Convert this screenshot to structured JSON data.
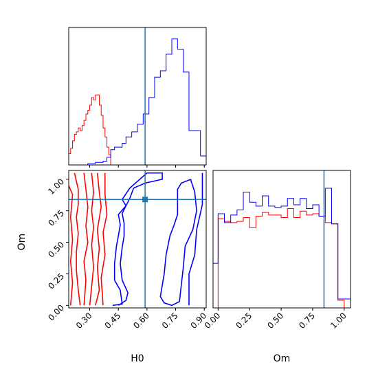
{
  "chart_data": {
    "type": "corner",
    "parameters": [
      "H0",
      "Om"
    ],
    "truth": {
      "H0": 0.59,
      "Om": 0.84
    },
    "colors": {
      "red": "#ff0000",
      "blue": "#0000ff",
      "truth": "#1f77b4"
    },
    "hist_H0": {
      "xlim": [
        0.19,
        0.91
      ],
      "ticks": [
        0.3,
        0.45,
        0.6,
        0.75,
        0.9
      ],
      "tick_labels": [
        "0.30",
        "0.45",
        "0.60",
        "0.75",
        "0.90"
      ],
      "red": {
        "edges": [
          0.19,
          0.2,
          0.21,
          0.22,
          0.23,
          0.24,
          0.25,
          0.26,
          0.27,
          0.28,
          0.29,
          0.3,
          0.31,
          0.32,
          0.33,
          0.34,
          0.35,
          0.36,
          0.37,
          0.38,
          0.39,
          0.4,
          0.41,
          0.42
        ],
        "counts": [
          0.09,
          0.13,
          0.19,
          0.24,
          0.26,
          0.29,
          0.27,
          0.31,
          0.35,
          0.4,
          0.43,
          0.47,
          0.53,
          0.51,
          0.55,
          0.55,
          0.47,
          0.39,
          0.29,
          0.22,
          0.14,
          0.08,
          0.0
        ]
      },
      "blue": {
        "edges": [
          0.27,
          0.29,
          0.31,
          0.33,
          0.35,
          0.37,
          0.39,
          0.41,
          0.43,
          0.45,
          0.47,
          0.49,
          0.52,
          0.55,
          0.58,
          0.61,
          0.64,
          0.67,
          0.7,
          0.73,
          0.76,
          0.79,
          0.82,
          0.85,
          0.88,
          0.91
        ],
        "counts": [
          0.0,
          0.01,
          0.01,
          0.02,
          0.02,
          0.03,
          0.06,
          0.12,
          0.14,
          0.14,
          0.17,
          0.22,
          0.26,
          0.32,
          0.4,
          0.53,
          0.69,
          0.74,
          0.87,
          0.99,
          0.91,
          0.73,
          0.27,
          0.27,
          0.07
        ]
      }
    },
    "hist_Om": {
      "xlim": [
        -0.04,
        1.05
      ],
      "ticks": [
        0.0,
        0.25,
        0.5,
        0.75,
        1.0
      ],
      "tick_labels": [
        "0.00",
        "0.25",
        "0.50",
        "0.75",
        "1.00"
      ],
      "red": {
        "edges": [
          -0.02,
          0.0,
          0.05,
          0.1,
          0.15,
          0.2,
          0.25,
          0.3,
          0.35,
          0.4,
          0.45,
          0.5,
          0.55,
          0.6,
          0.65,
          0.7,
          0.75,
          0.8,
          0.85,
          0.9,
          0.95,
          1.0,
          1.05
        ],
        "counts": [
          0.0,
          0.7,
          0.68,
          0.67,
          0.68,
          0.71,
          0.63,
          0.72,
          0.75,
          0.73,
          0.73,
          0.71,
          0.78,
          0.71,
          0.76,
          0.73,
          0.74,
          0.72,
          0.67,
          0.66,
          0.06,
          0.0
        ]
      },
      "blue": {
        "edges": [
          -0.04,
          0.0,
          0.05,
          0.1,
          0.15,
          0.2,
          0.25,
          0.3,
          0.35,
          0.4,
          0.45,
          0.5,
          0.55,
          0.6,
          0.65,
          0.7,
          0.75,
          0.8,
          0.85,
          0.9,
          0.95,
          1.0,
          1.05
        ],
        "counts": [
          0.35,
          0.74,
          0.67,
          0.73,
          0.77,
          0.91,
          0.83,
          0.8,
          0.88,
          0.8,
          0.79,
          0.8,
          0.86,
          0.81,
          0.86,
          0.78,
          0.81,
          0.72,
          0.94,
          0.66,
          0.07,
          0.07
        ]
      }
    },
    "contour": {
      "xlim": [
        0.19,
        0.91
      ],
      "ylim": [
        -0.02,
        1.07
      ],
      "xticks": [
        0.3,
        0.45,
        0.6,
        0.75,
        0.9
      ],
      "xtick_labels": [
        "0.30",
        "0.45",
        "0.60",
        "0.75",
        "0.90"
      ],
      "yticks": [
        0.0,
        0.25,
        0.5,
        0.75,
        1.0
      ],
      "ytick_labels": [
        "0.00",
        "0.25",
        "0.50",
        "0.75",
        "1.00"
      ],
      "blue": [
        [
          [
            0.42,
            0.0
          ],
          [
            0.47,
            0.01
          ],
          [
            0.46,
            0.12
          ],
          [
            0.43,
            0.2
          ],
          [
            0.43,
            0.33
          ],
          [
            0.44,
            0.47
          ],
          [
            0.45,
            0.55
          ],
          [
            0.46,
            0.64
          ],
          [
            0.45,
            0.72
          ],
          [
            0.49,
            0.79
          ],
          [
            0.47,
            0.84
          ],
          [
            0.51,
            0.93
          ],
          [
            0.6,
            1.05
          ],
          [
            0.68,
            1.05
          ],
          [
            0.68,
            1.0
          ],
          [
            0.59,
            0.97
          ],
          [
            0.53,
            0.93
          ],
          [
            0.51,
            0.85
          ],
          [
            0.47,
            0.73
          ],
          [
            0.48,
            0.65
          ],
          [
            0.48,
            0.55
          ],
          [
            0.47,
            0.46
          ],
          [
            0.46,
            0.33
          ],
          [
            0.47,
            0.2
          ],
          [
            0.5,
            0.1
          ],
          [
            0.49,
            0.04
          ],
          [
            0.45,
            0.0
          ]
        ],
        [
          [
            0.83,
            1.0
          ],
          [
            0.83,
            0.99
          ],
          [
            0.85,
            0.9
          ],
          [
            0.86,
            0.75
          ],
          [
            0.84,
            0.6
          ],
          [
            0.8,
            0.47
          ],
          [
            0.79,
            0.3
          ],
          [
            0.77,
            0.03
          ],
          [
            0.73,
            0.0
          ],
          [
            0.69,
            0.02
          ],
          [
            0.67,
            0.07
          ],
          [
            0.69,
            0.25
          ],
          [
            0.7,
            0.4
          ],
          [
            0.72,
            0.55
          ],
          [
            0.74,
            0.63
          ],
          [
            0.76,
            0.72
          ],
          [
            0.76,
            0.92
          ],
          [
            0.78,
            0.97
          ],
          [
            0.83,
            1.0
          ]
        ],
        [
          [
            0.89,
            1.05
          ],
          [
            0.89,
            0.8
          ],
          [
            0.86,
            0.6
          ],
          [
            0.85,
            0.4
          ],
          [
            0.82,
            0.25
          ],
          [
            0.82,
            0.0
          ]
        ]
      ],
      "red": [
        [
          [
            0.22,
            1.05
          ],
          [
            0.24,
            0.92
          ],
          [
            0.24,
            0.8
          ],
          [
            0.23,
            0.7
          ],
          [
            0.24,
            0.57
          ],
          [
            0.23,
            0.42
          ],
          [
            0.23,
            0.28
          ],
          [
            0.24,
            0.12
          ],
          [
            0.25,
            0.0
          ]
        ],
        [
          [
            0.27,
            1.05
          ],
          [
            0.28,
            0.92
          ],
          [
            0.29,
            0.78
          ],
          [
            0.28,
            0.63
          ],
          [
            0.29,
            0.5
          ],
          [
            0.27,
            0.35
          ],
          [
            0.28,
            0.2
          ],
          [
            0.27,
            0.0
          ]
        ],
        [
          [
            0.31,
            1.05
          ],
          [
            0.32,
            0.9
          ],
          [
            0.31,
            0.75
          ],
          [
            0.32,
            0.62
          ],
          [
            0.31,
            0.48
          ],
          [
            0.32,
            0.3
          ],
          [
            0.31,
            0.15
          ],
          [
            0.3,
            0.0
          ]
        ],
        [
          [
            0.34,
            1.05
          ],
          [
            0.35,
            0.9
          ],
          [
            0.36,
            0.78
          ],
          [
            0.34,
            0.6
          ],
          [
            0.35,
            0.45
          ],
          [
            0.34,
            0.3
          ],
          [
            0.35,
            0.12
          ],
          [
            0.33,
            0.0
          ]
        ],
        [
          [
            0.38,
            1.05
          ],
          [
            0.38,
            0.88
          ],
          [
            0.39,
            0.72
          ],
          [
            0.37,
            0.58
          ],
          [
            0.38,
            0.4
          ],
          [
            0.36,
            0.22
          ],
          [
            0.37,
            0.0
          ]
        ],
        [
          [
            0.19,
            0.95
          ],
          [
            0.21,
            0.88
          ],
          [
            0.2,
            0.7
          ],
          [
            0.21,
            0.52
          ],
          [
            0.2,
            0.35
          ],
          [
            0.21,
            0.18
          ],
          [
            0.2,
            0.0
          ]
        ]
      ]
    }
  }
}
